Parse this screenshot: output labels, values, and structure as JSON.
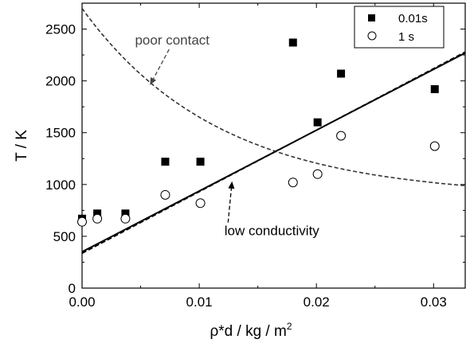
{
  "chart_data": {
    "type": "scatter",
    "xlabel_main": "ρ*d / kg / m",
    "xlabel_sup": "2",
    "ylabel": "T / K",
    "xlim": [
      0,
      0.0327
    ],
    "ylim": [
      0,
      2750
    ],
    "x_ticks": [
      0.0,
      0.01,
      0.02,
      0.03
    ],
    "x_tick_labels": [
      "0.00",
      "0.01",
      "0.02",
      "0.03"
    ],
    "y_ticks": [
      0,
      500,
      1000,
      1500,
      2000,
      2500
    ],
    "y_tick_labels": [
      "0",
      "500",
      "1000",
      "1500",
      "2000",
      "2500"
    ],
    "series": [
      {
        "name": "0.01s",
        "marker": "filled-square",
        "points": [
          [
            0.0,
            670
          ],
          [
            0.0013,
            720
          ],
          [
            0.0037,
            720
          ],
          [
            0.0071,
            1220
          ],
          [
            0.0101,
            1220
          ],
          [
            0.018,
            2370
          ],
          [
            0.0201,
            1600
          ],
          [
            0.0221,
            2070
          ],
          [
            0.0301,
            1920
          ]
        ]
      },
      {
        "name": "1 s",
        "marker": "open-circle",
        "points": [
          [
            0.0,
            640
          ],
          [
            0.0013,
            670
          ],
          [
            0.0037,
            670
          ],
          [
            0.0071,
            900
          ],
          [
            0.0101,
            820
          ],
          [
            0.018,
            1020
          ],
          [
            0.0201,
            1100
          ],
          [
            0.0221,
            1470
          ],
          [
            0.0301,
            1370
          ]
        ]
      }
    ],
    "fit_lines": [
      {
        "style": "solid",
        "x": [
          0,
          0.0327
        ],
        "y": [
          350,
          2270
        ]
      },
      {
        "style": "dashed",
        "x": [
          0,
          0.0327
        ],
        "y": [
          335,
          2280
        ]
      }
    ],
    "curve": {
      "style": "dashed",
      "form": "exponential",
      "base": 880,
      "amplitude": 1820,
      "decay_rate": 86
    },
    "annotations": [
      {
        "text": "poor contact",
        "at": [
          0.0077,
          2350
        ],
        "arrow_to": [
          0.0058,
          1960
        ]
      },
      {
        "text": "low conductivity",
        "at": [
          0.0162,
          510
        ],
        "arrow_to": [
          0.0128,
          1030
        ]
      }
    ],
    "legend_position": "top-right",
    "grid": false
  }
}
